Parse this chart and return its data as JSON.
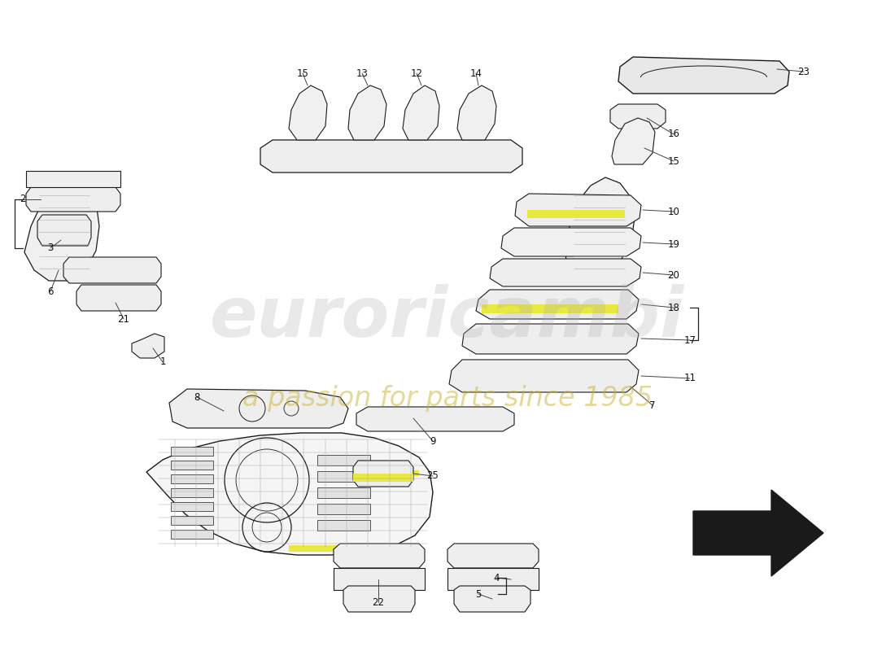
{
  "bg": "#ffffff",
  "lc": "#1a1a1a",
  "fc": "#f2f2f2",
  "hc": "#e8e840",
  "wm1": "euroricambi",
  "wm2": "a passion for parts since 1985",
  "wm1_color": "#b0b0b0",
  "wm2_color": "#c8b030",
  "arrow_fill": "#1a1a1a"
}
